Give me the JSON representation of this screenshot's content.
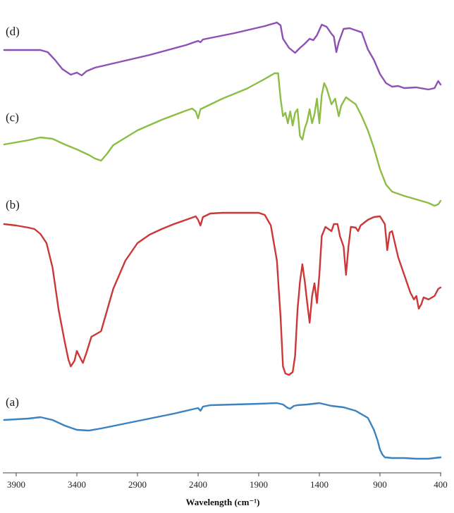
{
  "chart_data": {
    "type": "line",
    "title": "",
    "xlabel": "Wavelength (cm⁻¹)",
    "ylabel": "",
    "x_reversed": true,
    "xlim": [
      4000,
      400
    ],
    "x_ticks": [
      3900,
      3400,
      2900,
      2400,
      1900,
      1400,
      900,
      400
    ],
    "x_tick_labels": [
      "3900",
      "3400",
      "2900",
      "2400",
      "1900",
      "1400",
      "900",
      "400"
    ],
    "y_units": "arbitrary offset transmittance",
    "grid": false,
    "legend": "none; curves labelled inline",
    "series": [
      {
        "name": "(d)",
        "color": "#8e50b5",
        "points": [
          [
            4000,
            71
          ],
          [
            3700,
            71
          ],
          [
            3640,
            74
          ],
          [
            3580,
            85
          ],
          [
            3520,
            98
          ],
          [
            3450,
            106
          ],
          [
            3400,
            103
          ],
          [
            3360,
            107
          ],
          [
            3320,
            101
          ],
          [
            3250,
            96
          ],
          [
            3100,
            90
          ],
          [
            2800,
            78
          ],
          [
            2500,
            64
          ],
          [
            2400,
            58
          ],
          [
            2380,
            60
          ],
          [
            2360,
            56
          ],
          [
            2100,
            47
          ],
          [
            1850,
            37
          ],
          [
            1750,
            32
          ],
          [
            1720,
            36
          ],
          [
            1700,
            55
          ],
          [
            1650,
            68
          ],
          [
            1600,
            75
          ],
          [
            1560,
            68
          ],
          [
            1520,
            62
          ],
          [
            1480,
            55
          ],
          [
            1450,
            57
          ],
          [
            1420,
            50
          ],
          [
            1380,
            35
          ],
          [
            1340,
            38
          ],
          [
            1300,
            48
          ],
          [
            1280,
            52
          ],
          [
            1260,
            74
          ],
          [
            1240,
            60
          ],
          [
            1200,
            41
          ],
          [
            1150,
            40
          ],
          [
            1100,
            43
          ],
          [
            1050,
            46
          ],
          [
            1000,
            70
          ],
          [
            950,
            85
          ],
          [
            900,
            105
          ],
          [
            850,
            118
          ],
          [
            800,
            123
          ],
          [
            750,
            122
          ],
          [
            700,
            125
          ],
          [
            600,
            124
          ],
          [
            500,
            127
          ],
          [
            450,
            125
          ],
          [
            420,
            115
          ],
          [
            400,
            120
          ]
        ]
      },
      {
        "name": "(c)",
        "color": "#8cbd45",
        "points": [
          [
            4000,
            205
          ],
          [
            3900,
            202
          ],
          [
            3800,
            199
          ],
          [
            3700,
            195
          ],
          [
            3600,
            197
          ],
          [
            3500,
            205
          ],
          [
            3400,
            212
          ],
          [
            3300,
            220
          ],
          [
            3250,
            225
          ],
          [
            3200,
            228
          ],
          [
            3150,
            218
          ],
          [
            3100,
            206
          ],
          [
            2900,
            185
          ],
          [
            2700,
            170
          ],
          [
            2500,
            157
          ],
          [
            2450,
            154
          ],
          [
            2420,
            158
          ],
          [
            2400,
            168
          ],
          [
            2380,
            155
          ],
          [
            2200,
            140
          ],
          [
            2000,
            126
          ],
          [
            1850,
            112
          ],
          [
            1770,
            104
          ],
          [
            1740,
            104
          ],
          [
            1720,
            140
          ],
          [
            1700,
            165
          ],
          [
            1680,
            160
          ],
          [
            1660,
            175
          ],
          [
            1640,
            158
          ],
          [
            1620,
            178
          ],
          [
            1600,
            160
          ],
          [
            1580,
            155
          ],
          [
            1560,
            193
          ],
          [
            1540,
            198
          ],
          [
            1520,
            182
          ],
          [
            1500,
            172
          ],
          [
            1480,
            155
          ],
          [
            1460,
            175
          ],
          [
            1440,
            162
          ],
          [
            1420,
            140
          ],
          [
            1400,
            175
          ],
          [
            1380,
            135
          ],
          [
            1360,
            118
          ],
          [
            1340,
            125
          ],
          [
            1300,
            148
          ],
          [
            1270,
            140
          ],
          [
            1240,
            165
          ],
          [
            1220,
            150
          ],
          [
            1180,
            138
          ],
          [
            1150,
            142
          ],
          [
            1100,
            148
          ],
          [
            1050,
            165
          ],
          [
            1000,
            185
          ],
          [
            950,
            210
          ],
          [
            900,
            240
          ],
          [
            850,
            262
          ],
          [
            800,
            272
          ],
          [
            700,
            278
          ],
          [
            600,
            283
          ],
          [
            500,
            288
          ],
          [
            450,
            292
          ],
          [
            420,
            290
          ],
          [
            400,
            285
          ]
        ]
      },
      {
        "name": "(b)",
        "color": "#cc3838",
        "points": [
          [
            4000,
            318
          ],
          [
            3900,
            320
          ],
          [
            3800,
            323
          ],
          [
            3750,
            325
          ],
          [
            3700,
            332
          ],
          [
            3650,
            345
          ],
          [
            3600,
            380
          ],
          [
            3550,
            440
          ],
          [
            3500,
            485
          ],
          [
            3470,
            510
          ],
          [
            3450,
            520
          ],
          [
            3420,
            512
          ],
          [
            3400,
            498
          ],
          [
            3380,
            505
          ],
          [
            3350,
            515
          ],
          [
            3320,
            500
          ],
          [
            3280,
            478
          ],
          [
            3250,
            475
          ],
          [
            3200,
            470
          ],
          [
            3150,
            440
          ],
          [
            3100,
            410
          ],
          [
            3000,
            370
          ],
          [
            2900,
            345
          ],
          [
            2800,
            333
          ],
          [
            2700,
            325
          ],
          [
            2600,
            318
          ],
          [
            2500,
            312
          ],
          [
            2420,
            307
          ],
          [
            2400,
            312
          ],
          [
            2380,
            320
          ],
          [
            2360,
            308
          ],
          [
            2300,
            303
          ],
          [
            2200,
            302
          ],
          [
            1900,
            302
          ],
          [
            1850,
            305
          ],
          [
            1800,
            320
          ],
          [
            1750,
            370
          ],
          [
            1720,
            450
          ],
          [
            1700,
            520
          ],
          [
            1680,
            530
          ],
          [
            1650,
            532
          ],
          [
            1620,
            528
          ],
          [
            1600,
            505
          ],
          [
            1580,
            440
          ],
          [
            1560,
            400
          ],
          [
            1540,
            375
          ],
          [
            1520,
            400
          ],
          [
            1500,
            430
          ],
          [
            1480,
            458
          ],
          [
            1460,
            420
          ],
          [
            1440,
            402
          ],
          [
            1420,
            430
          ],
          [
            1400,
            390
          ],
          [
            1380,
            335
          ],
          [
            1350,
            322
          ],
          [
            1300,
            328
          ],
          [
            1280,
            318
          ],
          [
            1250,
            318
          ],
          [
            1230,
            335
          ],
          [
            1200,
            350
          ],
          [
            1180,
            390
          ],
          [
            1160,
            350
          ],
          [
            1140,
            322
          ],
          [
            1100,
            323
          ],
          [
            1080,
            328
          ],
          [
            1060,
            320
          ],
          [
            1000,
            312
          ],
          [
            950,
            308
          ],
          [
            900,
            307
          ],
          [
            860,
            318
          ],
          [
            840,
            355
          ],
          [
            820,
            330
          ],
          [
            800,
            328
          ],
          [
            750,
            365
          ],
          [
            700,
            390
          ],
          [
            650,
            415
          ],
          [
            620,
            425
          ],
          [
            600,
            420
          ],
          [
            580,
            438
          ],
          [
            560,
            432
          ],
          [
            540,
            422
          ],
          [
            500,
            425
          ],
          [
            450,
            420
          ],
          [
            420,
            410
          ],
          [
            400,
            408
          ]
        ]
      },
      {
        "name": "(a)",
        "color": "#3a82c1",
        "points": [
          [
            4000,
            596
          ],
          [
            3800,
            594
          ],
          [
            3700,
            592
          ],
          [
            3600,
            596
          ],
          [
            3500,
            604
          ],
          [
            3400,
            610
          ],
          [
            3300,
            611
          ],
          [
            3200,
            608
          ],
          [
            3000,
            601
          ],
          [
            2800,
            594
          ],
          [
            2600,
            587
          ],
          [
            2450,
            581
          ],
          [
            2400,
            579
          ],
          [
            2380,
            583
          ],
          [
            2360,
            577
          ],
          [
            2300,
            575
          ],
          [
            2100,
            574
          ],
          [
            1900,
            573
          ],
          [
            1750,
            572
          ],
          [
            1700,
            574
          ],
          [
            1660,
            579
          ],
          [
            1640,
            580
          ],
          [
            1610,
            576
          ],
          [
            1580,
            575
          ],
          [
            1500,
            574
          ],
          [
            1400,
            572
          ],
          [
            1350,
            574
          ],
          [
            1300,
            576
          ],
          [
            1200,
            578
          ],
          [
            1100,
            583
          ],
          [
            1000,
            593
          ],
          [
            950,
            610
          ],
          [
            920,
            625
          ],
          [
            900,
            638
          ],
          [
            880,
            645
          ],
          [
            860,
            649
          ],
          [
            800,
            650
          ],
          [
            700,
            650
          ],
          [
            600,
            651
          ],
          [
            500,
            651
          ],
          [
            400,
            649
          ]
        ]
      }
    ],
    "curve_labels": [
      {
        "text": "(d)",
        "series": "(d)"
      },
      {
        "text": "(c)",
        "series": "(c)"
      },
      {
        "text": "(b)",
        "series": "(b)"
      },
      {
        "text": "(a)",
        "series": "(a)"
      }
    ]
  }
}
